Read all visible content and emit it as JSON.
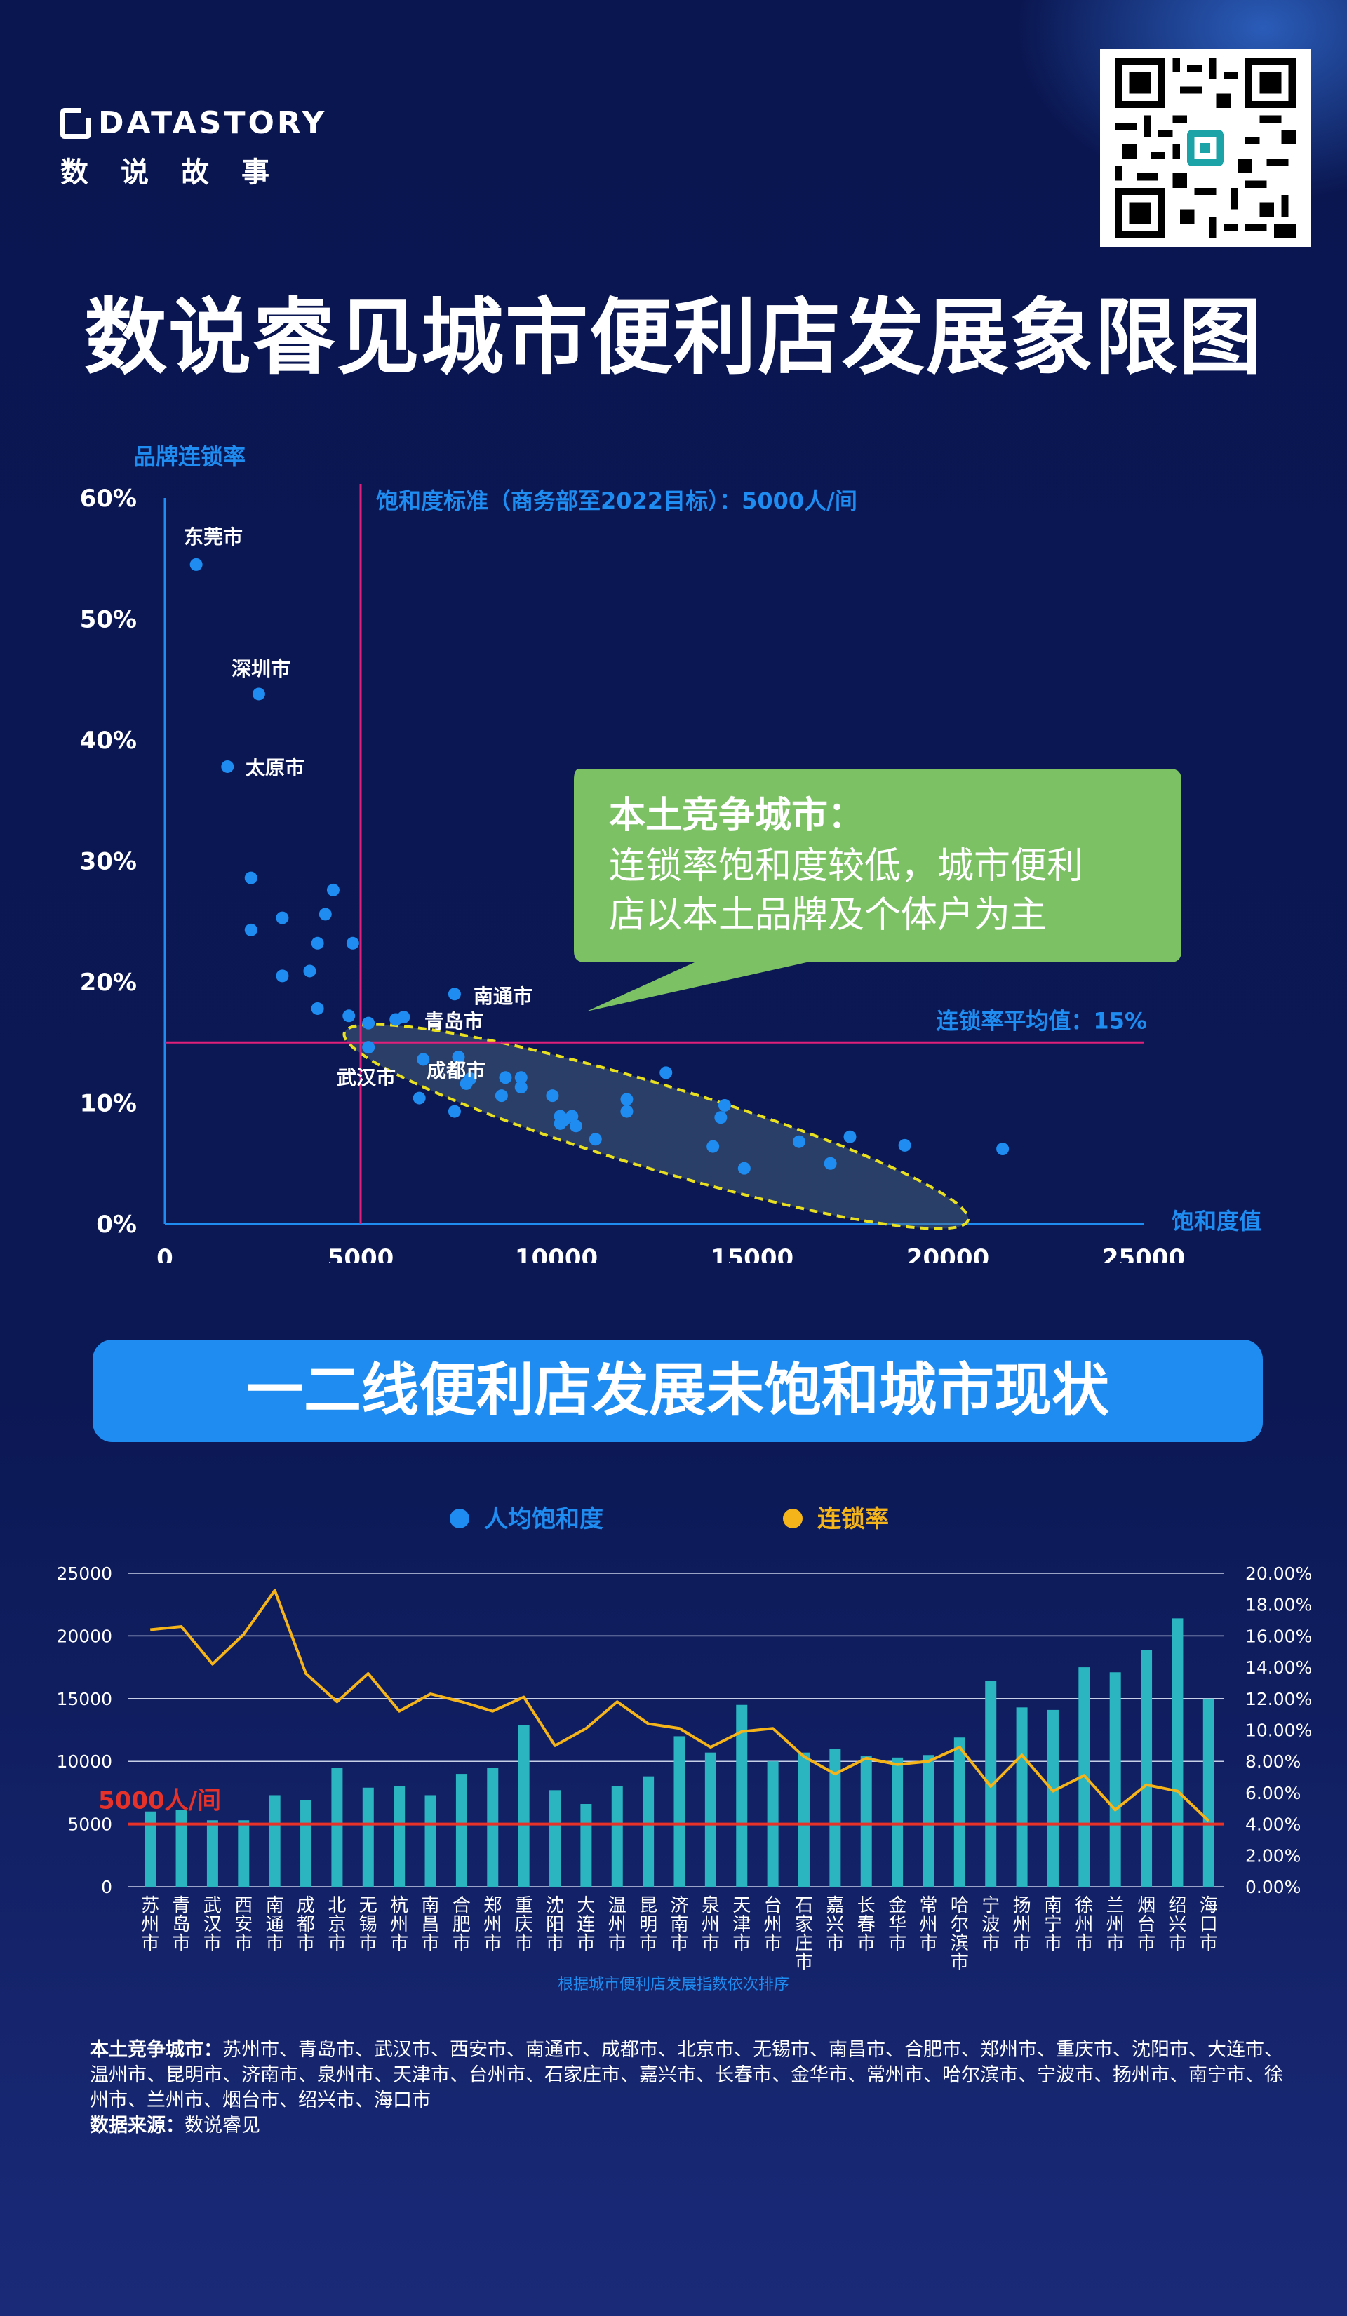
{
  "brand": {
    "name": "DATASTORY",
    "sub": "数说故事"
  },
  "title": "数说睿见城市便利店发展象限图",
  "chart_data": [
    {
      "type": "scatter",
      "ylabel": "品牌连锁率",
      "xlabel": "饱和度值",
      "xlim": [
        0,
        25000
      ],
      "ylim": [
        0,
        60
      ],
      "xticks": [
        "0",
        "5000",
        "10000",
        "15000",
        "20000",
        "25000"
      ],
      "yticks": [
        "0%",
        "10%",
        "20%",
        "30%",
        "40%",
        "50%",
        "60%"
      ],
      "vline": {
        "x": 5000,
        "label": "饱和度标准（商务部至2022目标）：5000人/间"
      },
      "hline": {
        "y": 15,
        "label": "连锁率平均值：15%"
      },
      "callout": {
        "title": "本土竞争城市：",
        "line1": "连锁率饱和度较低，城市便利",
        "line2": "店以本土品牌及个体户为主"
      },
      "labels": {
        "dongguan": "东莞市",
        "shenzhen": "深圳市",
        "taiyuan": "太原市",
        "nantong": "南通市",
        "qingdao": "青岛市",
        "wuhan": "武汉市",
        "chengdu": "成都市"
      },
      "points": [
        [
          800,
          54.5
        ],
        [
          2400,
          43.8
        ],
        [
          1600,
          37.8
        ],
        [
          2200,
          28.6
        ],
        [
          2200,
          24.3
        ],
        [
          3000,
          25.3
        ],
        [
          4300,
          27.6
        ],
        [
          4100,
          25.6
        ],
        [
          3900,
          23.2
        ],
        [
          4800,
          23.2
        ],
        [
          3000,
          20.5
        ],
        [
          3700,
          20.9
        ],
        [
          3900,
          17.8
        ],
        [
          4700,
          17.2
        ],
        [
          5200,
          16.6
        ],
        [
          5900,
          16.9
        ],
        [
          6100,
          17.1
        ],
        [
          7400,
          19.0
        ],
        [
          5200,
          14.6
        ],
        [
          6600,
          13.6
        ],
        [
          7500,
          13.8
        ],
        [
          6500,
          10.4
        ],
        [
          7400,
          9.3
        ],
        [
          7700,
          11.6
        ],
        [
          7800,
          12.0
        ],
        [
          8700,
          12.1
        ],
        [
          8600,
          10.6
        ],
        [
          9100,
          12.1
        ],
        [
          9100,
          11.3
        ],
        [
          9900,
          10.6
        ],
        [
          10100,
          8.9
        ],
        [
          10100,
          8.3
        ],
        [
          10200,
          8.6
        ],
        [
          10400,
          8.9
        ],
        [
          10500,
          8.1
        ],
        [
          11000,
          7.0
        ],
        [
          11800,
          10.3
        ],
        [
          11800,
          9.3
        ],
        [
          12800,
          12.5
        ],
        [
          14000,
          6.4
        ],
        [
          14200,
          8.8
        ],
        [
          14300,
          9.8
        ],
        [
          14800,
          4.6
        ],
        [
          16200,
          6.8
        ],
        [
          17000,
          5.0
        ],
        [
          17500,
          7.2
        ],
        [
          18900,
          6.5
        ],
        [
          21400,
          6.2
        ]
      ]
    },
    {
      "type": "bar",
      "legend": [
        "人均饱和度",
        "连锁率"
      ],
      "yticks_left": [
        "0",
        "5000",
        "10000",
        "15000",
        "20000",
        "25000"
      ],
      "yticks_right": [
        "0.00%",
        "2.00%",
        "4.00%",
        "6.00%",
        "8.00%",
        "10.00%",
        "12.00%",
        "14.00%",
        "16.00%",
        "18.00%",
        "20.00%"
      ],
      "ylim_left": [
        0,
        25000
      ],
      "ylim_right": [
        0,
        20
      ],
      "threshold": {
        "value": 5000,
        "label": "5000人/间"
      },
      "categories": [
        "苏州市",
        "青岛市",
        "武汉市",
        "西安市",
        "南通市",
        "成都市",
        "北京市",
        "无锡市",
        "杭州市",
        "南昌市",
        "合肥市",
        "郑州市",
        "重庆市",
        "沈阳市",
        "大连市",
        "温州市",
        "昆明市",
        "济南市",
        "泉州市",
        "天津市",
        "台州市",
        "石家庄市",
        "嘉兴市",
        "长春市",
        "金华市",
        "常州市",
        "哈尔滨市",
        "宁波市",
        "扬州市",
        "南宁市",
        "徐州市",
        "兰州市",
        "烟台市",
        "绍兴市",
        "海口市"
      ],
      "series": [
        {
          "name": "人均饱和度",
          "values": [
            6000,
            6100,
            5300,
            5300,
            7300,
            6900,
            9500,
            7900,
            8000,
            7300,
            9000,
            9500,
            12900,
            7700,
            6600,
            8000,
            8800,
            12000,
            10700,
            14500,
            10000,
            10700,
            11000,
            10400,
            10300,
            10500,
            11900,
            16400,
            14300,
            14100,
            17500,
            17100,
            18900,
            21400,
            15000
          ]
        },
        {
          "name": "连锁率",
          "values": [
            16.4,
            16.6,
            14.2,
            16.1,
            18.9,
            13.6,
            11.8,
            13.6,
            11.2,
            12.3,
            11.8,
            11.2,
            12.1,
            9.0,
            10.1,
            11.8,
            10.4,
            10.1,
            8.9,
            9.9,
            10.1,
            8.3,
            7.2,
            8.2,
            7.8,
            8.0,
            8.9,
            6.4,
            8.4,
            6.1,
            7.1,
            4.9,
            6.5,
            6.1,
            4.2
          ]
        }
      ],
      "xnote": "根据城市便利店发展指数依次排序"
    }
  ],
  "section2_title": "一二线便利店发展未饱和城市现状",
  "notes": {
    "local_label": "本土竞争城市：",
    "local_list": "苏州市、青岛市、武汉市、西安市、南通市、成都市、北京市、无锡市、南昌市、合肥市、郑州市、重庆市、沈阳市、大连市、温州市、昆明市、济南市、泉州市、天津市、台州市、石家庄市、嘉兴市、长春市、金华市、常州市、哈尔滨市、宁波市、扬州市、南宁市、徐州市、兰州市、烟台市、绍兴市、海口市",
    "source_label": "数据来源：",
    "source": "数说睿见"
  },
  "colors": {
    "bg": "#0a1650",
    "blue": "#1e8cf0",
    "teal": "#2bb5c0",
    "gold": "#f4b41a",
    "magenta": "#e0207a",
    "red": "#e63228",
    "green": "#7cc163",
    "yellow_dash": "#e8e020"
  }
}
